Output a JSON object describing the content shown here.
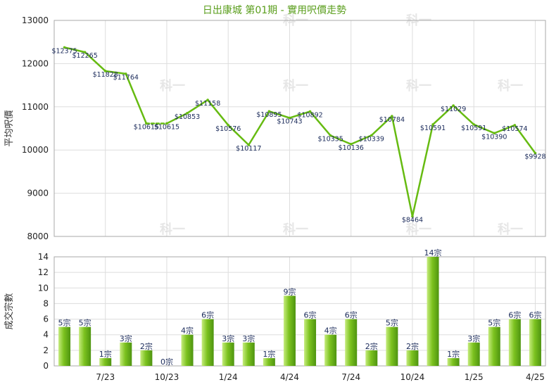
{
  "title": "日出康城 第01期 - 實用呎價走勢",
  "colors": {
    "title": "#5a9e1c",
    "line": "#66bb11",
    "bar_light": "#c6ec7e",
    "bar_mid": "#7cc21f",
    "bar_dark": "#4e9410",
    "label": "#1a2a5a",
    "grid": "#dddddd",
    "frame": "#aaaaaa"
  },
  "watermark_text": "科一",
  "chart_data": [
    {
      "type": "line",
      "ylabel": "平均呎價",
      "ylim": [
        8000,
        13000
      ],
      "yticks": [
        "8000",
        "9000",
        "10000",
        "11000",
        "12000",
        "13000"
      ],
      "grid": true,
      "values": [
        12375,
        12265,
        11828,
        11764,
        10615,
        10615,
        10853,
        11158,
        10576,
        10117,
        10895,
        10743,
        10892,
        10335,
        10136,
        10339,
        10784,
        8464,
        10591,
        11029,
        10591,
        10390,
        10574,
        9928
      ],
      "labels": [
        "$12375",
        "$12265",
        "$11828",
        "$11764",
        "$10615",
        "$10615",
        "$10853",
        "$11158",
        "$10576",
        "$10117",
        "$10895",
        "$10743",
        "$10892",
        "$10335",
        "$10136",
        "$10339",
        "$10784",
        "$8464",
        "$10591",
        "$11029",
        "$10591",
        "$10390",
        "$10574",
        "$9928"
      ],
      "carried_forward": [
        5
      ]
    },
    {
      "type": "bar",
      "ylabel": "成交宗數",
      "ylim": [
        0,
        14
      ],
      "yticks": [
        "0",
        "2",
        "4",
        "6",
        "8",
        "10",
        "12",
        "14"
      ],
      "grid": true,
      "values": [
        5,
        5,
        1,
        3,
        2,
        0,
        4,
        6,
        3,
        3,
        1,
        9,
        6,
        4,
        6,
        2,
        5,
        2,
        14,
        1,
        3,
        5,
        6,
        6
      ],
      "labels": [
        "5宗",
        "5宗",
        "1宗",
        "3宗",
        "2宗",
        "0宗",
        "4宗",
        "6宗",
        "3宗",
        "3宗",
        "1宗",
        "9宗",
        "6宗",
        "4宗",
        "6宗",
        "2宗",
        "5宗",
        "2宗",
        "14宗",
        "1宗",
        "3宗",
        "5宗",
        "6宗",
        "6宗"
      ]
    }
  ],
  "x_axis": {
    "ticks": [
      {
        "index": 2,
        "label": "7/23"
      },
      {
        "index": 5,
        "label": "10/23"
      },
      {
        "index": 8,
        "label": "1/24"
      },
      {
        "index": 11,
        "label": "4/24"
      },
      {
        "index": 14,
        "label": "7/24"
      },
      {
        "index": 17,
        "label": "10/24"
      },
      {
        "index": 20,
        "label": "1/25"
      },
      {
        "index": 23,
        "label": "4/25"
      }
    ]
  }
}
